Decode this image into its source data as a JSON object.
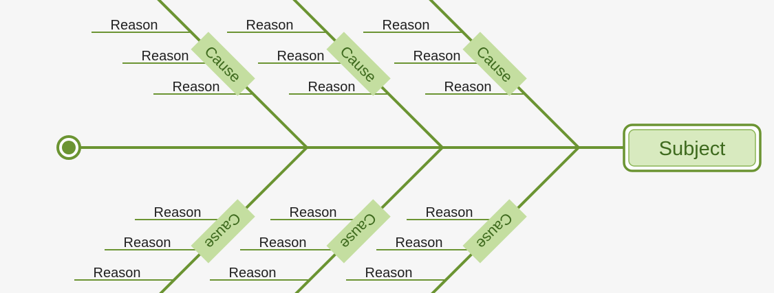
{
  "diagram": {
    "subject": "Subject",
    "colors": {
      "background": "#f6f6f6",
      "line": "#6b9432",
      "cause_fill": "#c4dea0",
      "cause_text": "#3e6a1e",
      "subject_fill": "#d8eabf",
      "subject_border": "#6b9432",
      "reason_text": "#1e1e1e"
    },
    "causes": [
      {
        "label": "Cause",
        "side": "top",
        "reasons": [
          "Reason",
          "Reason",
          "Reason"
        ]
      },
      {
        "label": "Cause",
        "side": "top",
        "reasons": [
          "Reason",
          "Reason",
          "Reason"
        ]
      },
      {
        "label": "Cause",
        "side": "top",
        "reasons": [
          "Reason",
          "Reason",
          "Reason"
        ]
      },
      {
        "label": "Cause",
        "side": "bottom",
        "reasons": [
          "Reason",
          "Reason",
          "Reason"
        ]
      },
      {
        "label": "Cause",
        "side": "bottom",
        "reasons": [
          "Reason",
          "Reason",
          "Reason"
        ]
      },
      {
        "label": "Cause",
        "side": "bottom",
        "reasons": [
          "Reason",
          "Reason",
          "Reason"
        ]
      }
    ]
  }
}
